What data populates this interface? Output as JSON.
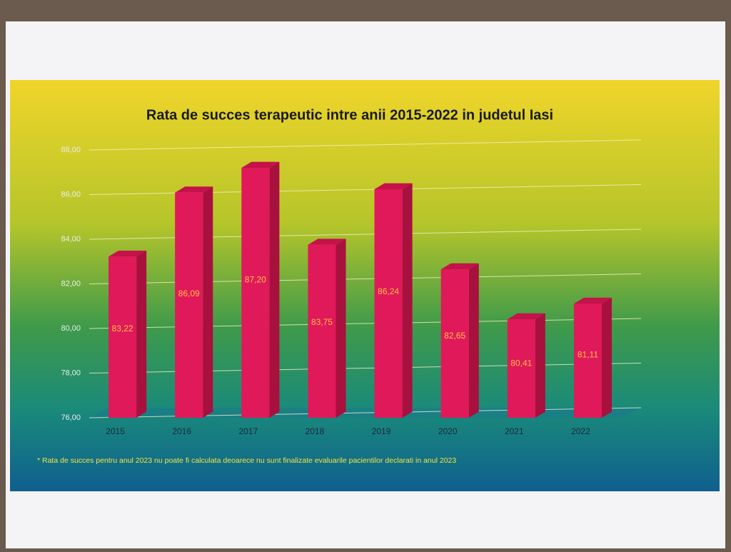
{
  "chart_data": {
    "type": "bar",
    "title": "Rata de succes terapeutic intre anii 2015-2022 in judetul Iasi",
    "categories": [
      "2015",
      "2016",
      "2017",
      "2018",
      "2019",
      "2020",
      "2021",
      "2022"
    ],
    "values": [
      83.22,
      86.09,
      87.2,
      83.75,
      86.24,
      82.65,
      80.41,
      81.11
    ],
    "value_labels": [
      "83,22",
      "86,09",
      "87,20",
      "83,75",
      "86,24",
      "82,65",
      "80,41",
      "81,11"
    ],
    "color": "#e0195a",
    "ylim": [
      76,
      88
    ],
    "yticks": [
      {
        "value": 76,
        "label": "76,00"
      },
      {
        "value": 78,
        "label": "78,00"
      },
      {
        "value": 80,
        "label": "80,00"
      },
      {
        "value": 82,
        "label": "82,00"
      },
      {
        "value": 84,
        "label": "84,00"
      },
      {
        "value": 86,
        "label": "86,00"
      },
      {
        "value": 88,
        "label": "88,00"
      }
    ],
    "grid": true,
    "footnote": "* Rata de succes pentru anul 2023 nu poate fi calculata deoarece nu sunt finalizate evaluarile pacientilor declarati in anul 2023"
  }
}
